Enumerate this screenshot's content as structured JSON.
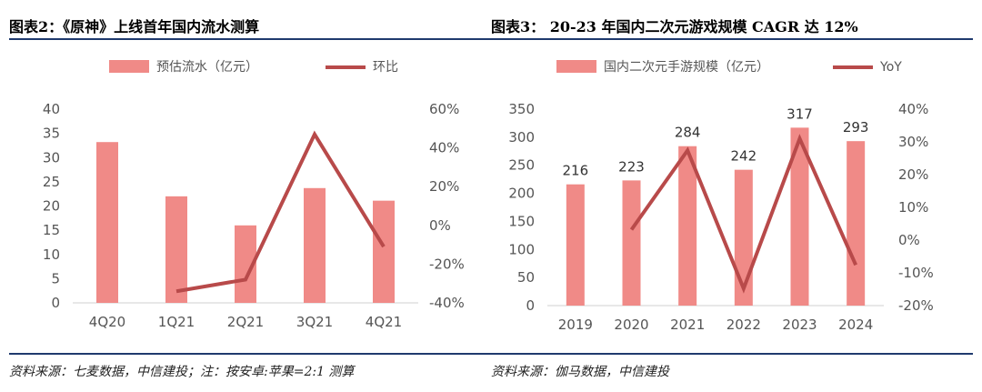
{
  "colors": {
    "bar": "#f08a87",
    "line": "#b84a4a",
    "rule": "#1f3a6e"
  },
  "left": {
    "title": "图表2：《原神》上线首年国内流水测算",
    "source": "资料来源：七麦数据，中信建投；注：按安卓:苹果=2:1 测算",
    "chart_data": {
      "type": "bar",
      "categories": [
        "4Q20",
        "1Q21",
        "2Q21",
        "3Q21",
        "4Q21"
      ],
      "series": [
        {
          "name": "预估流水（亿元）",
          "type": "bar",
          "axis": "left",
          "values": [
            33.2,
            22.0,
            16.0,
            23.7,
            21.1
          ]
        },
        {
          "name": "环比",
          "type": "line",
          "axis": "right",
          "values": [
            null,
            -34,
            -28,
            47,
            -11
          ]
        }
      ],
      "y_left": {
        "min": 0,
        "max": 40,
        "ticks": [
          "0",
          "5",
          "10",
          "15",
          "20",
          "25",
          "30",
          "35",
          "40"
        ]
      },
      "y_right": {
        "min": -40,
        "max": 60,
        "ticks": [
          "-40%",
          "-20%",
          "0%",
          "20%",
          "40%",
          "60%"
        ]
      }
    }
  },
  "right": {
    "title": "图表3：  20-23 年国内二次元游戏规模 CAGR 达 12%",
    "source": "资料来源：伽马数据，中信建投",
    "chart_data": {
      "type": "bar",
      "categories": [
        "2019",
        "2020",
        "2021",
        "2022",
        "2023",
        "2024"
      ],
      "series": [
        {
          "name": "国内二次元手游规模（亿元）",
          "type": "bar",
          "axis": "left",
          "values": [
            216,
            223,
            284,
            242,
            317,
            293
          ],
          "labels": [
            "216",
            "223",
            "284",
            "242",
            "317",
            "293"
          ]
        },
        {
          "name": "YoY",
          "type": "line",
          "axis": "right",
          "values": [
            null,
            3.2,
            27.4,
            -14.8,
            31.0,
            -7.6
          ]
        }
      ],
      "y_left": {
        "min": 0,
        "max": 350,
        "ticks": [
          "0",
          "50",
          "100",
          "150",
          "200",
          "250",
          "300",
          "350"
        ]
      },
      "y_right": {
        "min": -20,
        "max": 40,
        "ticks": [
          "-20%",
          "-10%",
          "0%",
          "10%",
          "20%",
          "30%",
          "40%"
        ]
      }
    }
  }
}
